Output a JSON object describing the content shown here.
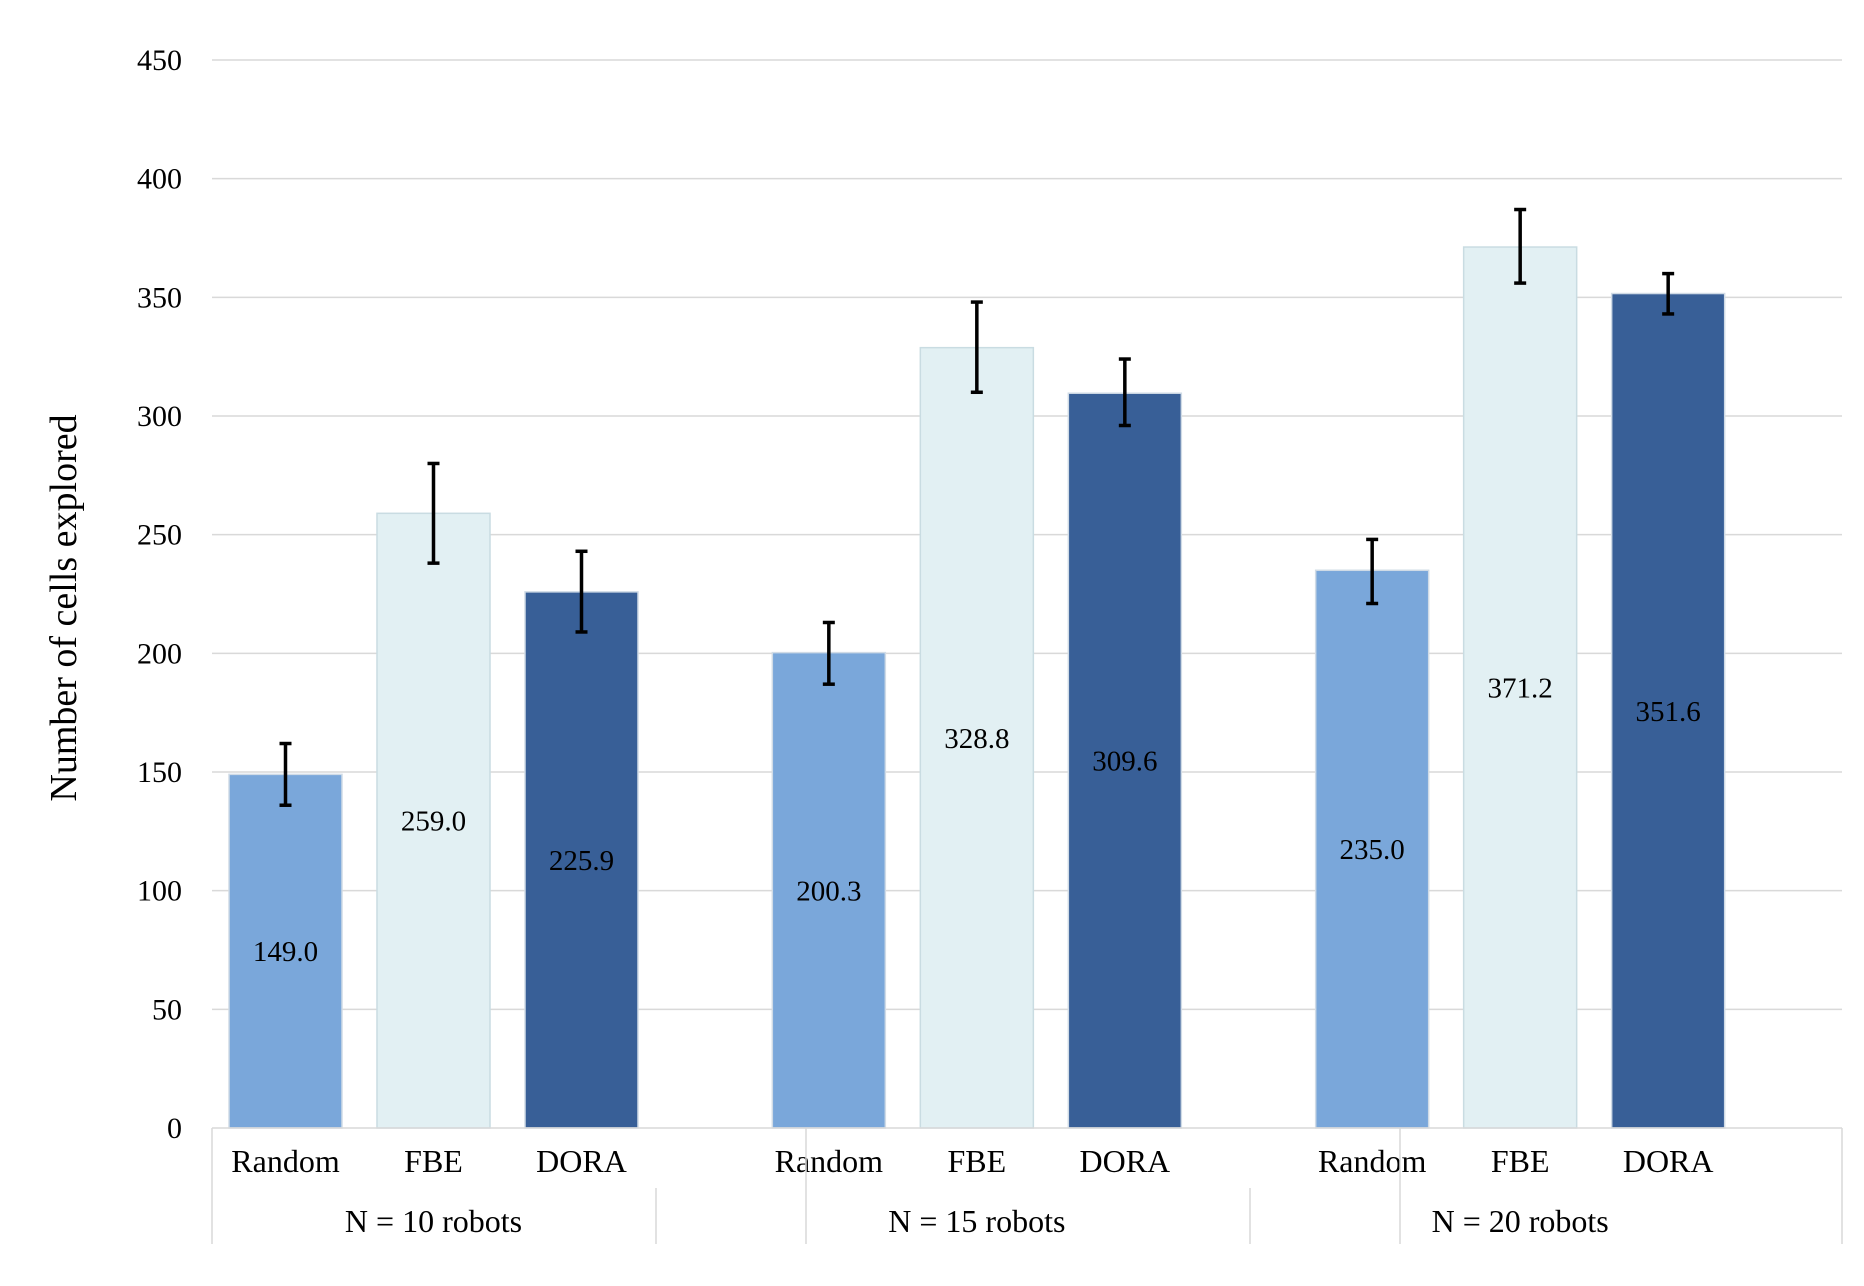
{
  "chart_data": {
    "type": "bar",
    "title": "",
    "ylabel": "Number of cells explored",
    "xlabel": "",
    "ylim": [
      0,
      450
    ],
    "yticks": [
      0,
      50,
      100,
      150,
      200,
      250,
      300,
      350,
      400,
      450
    ],
    "grid": true,
    "groups": [
      {
        "label": "N = 10 robots",
        "bars": [
          {
            "category": "Random",
            "value": 149.0,
            "label": "149.0",
            "err_low": 136,
            "err_high": 162,
            "color": "#7aa7da"
          },
          {
            "category": "FBE",
            "value": 259.0,
            "label": "259.0",
            "err_low": 238,
            "err_high": 280,
            "color": "#e2f0f3"
          },
          {
            "category": "DORA",
            "value": 225.9,
            "label": "225.9",
            "err_low": 209,
            "err_high": 243,
            "color": "#385f97"
          }
        ]
      },
      {
        "label": "N = 15 robots",
        "bars": [
          {
            "category": "Random",
            "value": 200.3,
            "label": "200.3",
            "err_low": 187,
            "err_high": 213,
            "color": "#7aa7da"
          },
          {
            "category": "FBE",
            "value": 328.8,
            "label": "328.8",
            "err_low": 310,
            "err_high": 348,
            "color": "#e2f0f3"
          },
          {
            "category": "DORA",
            "value": 309.6,
            "label": "309.6",
            "err_low": 296,
            "err_high": 324,
            "color": "#385f97"
          }
        ]
      },
      {
        "label": "N = 20 robots",
        "bars": [
          {
            "category": "Random",
            "value": 235.0,
            "label": "235.0",
            "err_low": 221,
            "err_high": 248,
            "color": "#7aa7da"
          },
          {
            "category": "FBE",
            "value": 371.2,
            "label": "371.2",
            "err_low": 356,
            "err_high": 387,
            "color": "#e2f0f3"
          },
          {
            "category": "DORA",
            "value": 351.6,
            "label": "351.6",
            "err_low": 343,
            "err_high": 360,
            "color": "#385f97"
          }
        ]
      }
    ]
  }
}
